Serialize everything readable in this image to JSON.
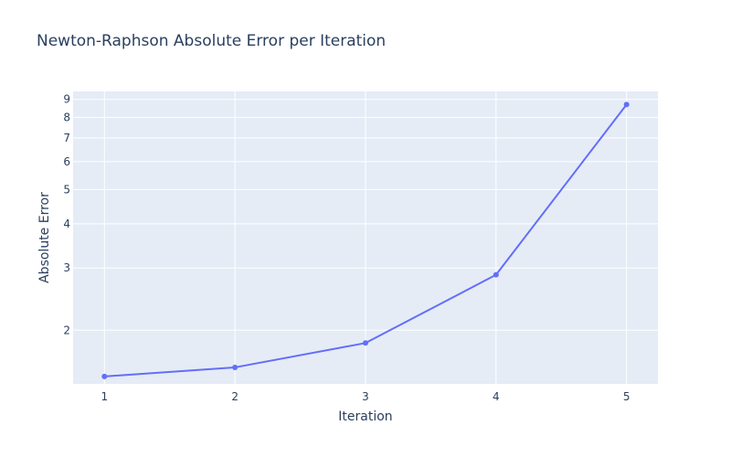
{
  "chart_data": {
    "type": "line",
    "title": "Newton-Raphson Absolute Error per Iteration",
    "xlabel": "Iteration",
    "ylabel": "Absolute Error",
    "x": [
      1,
      2,
      3,
      4,
      5
    ],
    "series": [
      {
        "values": [
          1.48,
          1.57,
          1.84,
          2.87,
          8.7
        ],
        "color": "#636efa",
        "mode": "lines+markers"
      }
    ],
    "x_ticks": [
      1,
      2,
      3,
      4,
      5
    ],
    "y_scale": "log",
    "y_ticks": [
      2,
      3,
      4,
      5,
      6,
      7,
      8,
      9
    ],
    "xlim": [
      0.76,
      5.24
    ],
    "ylim": [
      1.41,
      9.48
    ],
    "grid": true,
    "colors": {
      "plot_bg": "#e5ecf6",
      "grid": "#ffffff",
      "text": "#2a3f5f",
      "line": "#636efa"
    }
  }
}
